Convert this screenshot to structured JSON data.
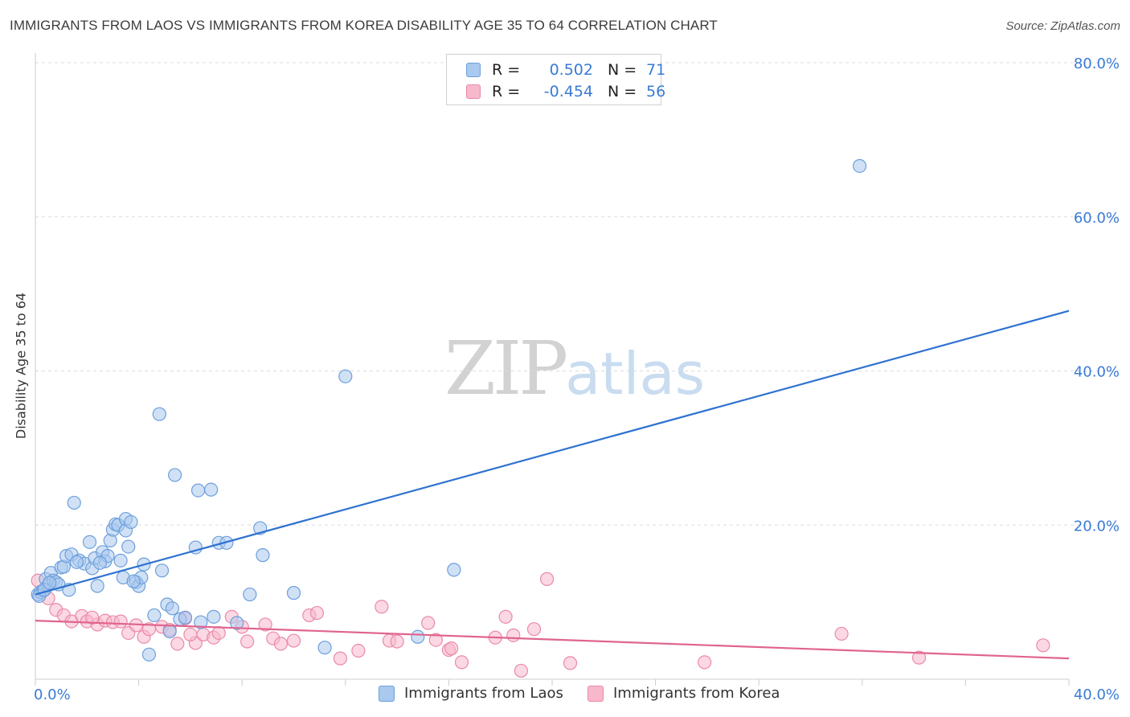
{
  "header": {
    "title": "IMMIGRANTS FROM LAOS VS IMMIGRANTS FROM KOREA DISABILITY AGE 35 TO 64 CORRELATION CHART",
    "source": "Source: ZipAtlas.com"
  },
  "watermark": {
    "zip": "ZIP",
    "atlas": "atlas"
  },
  "legend": {
    "laos": {
      "r_label": "R =",
      "r_value": "0.502",
      "n_label": "N =",
      "n_value": "71"
    },
    "korea": {
      "r_label": "R =",
      "r_value": "-0.454",
      "n_label": "N =",
      "n_value": "56"
    }
  },
  "bottom_legend": {
    "laos_label": "Immigrants from Laos",
    "korea_label": "Immigrants from Korea"
  },
  "colors": {
    "laos_fill": "#a9c9ef",
    "laos_stroke": "#6d9fdc",
    "laos_line": "#2f72d0",
    "korea_fill": "#f7b8cc",
    "korea_stroke": "#ea8aa8",
    "korea_line": "#e0648f",
    "tick_text": "#3a7bd5",
    "grid": "#dddddd"
  },
  "chart_data": {
    "type": "scatter",
    "title": "IMMIGRANTS FROM LAOS VS IMMIGRANTS FROM KOREA DISABILITY AGE 35 TO 64 CORRELATION CHART",
    "xlabel": "",
    "ylabel": "Disability Age 35 to 64",
    "xlim": [
      0,
      40
    ],
    "ylim": [
      0,
      80
    ],
    "x_tick_labels": [
      "0.0%",
      "40.0%"
    ],
    "y_ticks": [
      20,
      40,
      60,
      80
    ],
    "y_tick_labels": [
      "20.0%",
      "40.0%",
      "60.0%",
      "80.0%"
    ],
    "grid": true,
    "series": [
      {
        "name": "Immigrants from Laos",
        "r": 0.502,
        "n": 71,
        "trend": {
          "x": [
            0,
            40
          ],
          "y": [
            11.0,
            47.8
          ]
        },
        "points": [
          [
            0.1,
            11.0
          ],
          [
            0.2,
            11.3
          ],
          [
            0.3,
            11.5
          ],
          [
            0.4,
            13.0
          ],
          [
            0.5,
            12.2
          ],
          [
            0.6,
            13.8
          ],
          [
            0.7,
            12.8
          ],
          [
            0.8,
            12.6
          ],
          [
            0.9,
            12.3
          ],
          [
            1.0,
            14.5
          ],
          [
            1.1,
            14.6
          ],
          [
            1.3,
            11.6
          ],
          [
            1.2,
            16.0
          ],
          [
            1.4,
            16.2
          ],
          [
            1.5,
            22.9
          ],
          [
            1.7,
            15.4
          ],
          [
            1.9,
            15.0
          ],
          [
            2.1,
            17.8
          ],
          [
            2.2,
            14.4
          ],
          [
            2.3,
            15.7
          ],
          [
            2.4,
            12.1
          ],
          [
            2.6,
            16.5
          ],
          [
            2.7,
            15.3
          ],
          [
            2.8,
            16.0
          ],
          [
            2.9,
            18.0
          ],
          [
            3.0,
            19.4
          ],
          [
            3.1,
            20.1
          ],
          [
            3.2,
            20.0
          ],
          [
            3.3,
            15.4
          ],
          [
            3.4,
            13.2
          ],
          [
            3.5,
            19.3
          ],
          [
            3.5,
            20.8
          ],
          [
            3.6,
            17.2
          ],
          [
            3.7,
            20.4
          ],
          [
            3.9,
            12.6
          ],
          [
            4.0,
            12.1
          ],
          [
            4.1,
            13.2
          ],
          [
            4.2,
            14.9
          ],
          [
            4.4,
            3.2
          ],
          [
            4.6,
            8.3
          ],
          [
            4.8,
            34.4
          ],
          [
            4.9,
            14.1
          ],
          [
            5.1,
            9.7
          ],
          [
            5.3,
            9.2
          ],
          [
            5.4,
            26.5
          ],
          [
            5.6,
            7.8
          ],
          [
            5.2,
            6.2
          ],
          [
            6.2,
            17.1
          ],
          [
            6.3,
            24.5
          ],
          [
            6.4,
            7.4
          ],
          [
            6.8,
            24.6
          ],
          [
            6.9,
            8.1
          ],
          [
            7.1,
            17.7
          ],
          [
            7.4,
            17.7
          ],
          [
            7.8,
            7.3
          ],
          [
            8.3,
            11.0
          ],
          [
            8.7,
            19.6
          ],
          [
            8.8,
            16.1
          ],
          [
            10.0,
            11.2
          ],
          [
            11.2,
            4.1
          ],
          [
            12.0,
            39.3
          ],
          [
            14.8,
            5.5
          ],
          [
            16.2,
            14.2
          ],
          [
            31.9,
            66.6
          ],
          [
            0.15,
            10.8
          ],
          [
            0.35,
            11.6
          ],
          [
            0.55,
            12.5
          ],
          [
            1.6,
            15.2
          ],
          [
            2.5,
            15.1
          ],
          [
            3.8,
            12.7
          ],
          [
            5.8,
            8.0
          ]
        ]
      },
      {
        "name": "Immigrants from Korea",
        "r": -0.454,
        "n": 56,
        "trend": {
          "x": [
            0,
            40
          ],
          "y": [
            7.6,
            2.7
          ]
        },
        "points": [
          [
            0.1,
            12.8
          ],
          [
            0.3,
            11.5
          ],
          [
            0.5,
            10.5
          ],
          [
            0.8,
            9.0
          ],
          [
            1.1,
            8.3
          ],
          [
            1.4,
            7.5
          ],
          [
            1.8,
            8.2
          ],
          [
            2.0,
            7.5
          ],
          [
            2.4,
            7.1
          ],
          [
            2.7,
            7.6
          ],
          [
            3.0,
            7.4
          ],
          [
            3.3,
            7.5
          ],
          [
            3.6,
            6.0
          ],
          [
            3.9,
            7.0
          ],
          [
            4.2,
            5.5
          ],
          [
            4.4,
            6.5
          ],
          [
            4.9,
            6.8
          ],
          [
            5.2,
            6.4
          ],
          [
            5.5,
            4.6
          ],
          [
            5.8,
            7.9
          ],
          [
            6.2,
            4.7
          ],
          [
            6.5,
            5.8
          ],
          [
            6.9,
            5.4
          ],
          [
            7.1,
            6.0
          ],
          [
            7.6,
            8.1
          ],
          [
            8.0,
            6.8
          ],
          [
            8.2,
            4.9
          ],
          [
            8.9,
            7.1
          ],
          [
            9.2,
            5.3
          ],
          [
            9.5,
            4.6
          ],
          [
            10.0,
            5.0
          ],
          [
            10.6,
            8.3
          ],
          [
            10.9,
            8.6
          ],
          [
            11.8,
            2.7
          ],
          [
            12.5,
            3.7
          ],
          [
            13.4,
            9.4
          ],
          [
            13.7,
            5.0
          ],
          [
            15.2,
            7.3
          ],
          [
            15.5,
            5.1
          ],
          [
            16.0,
            3.8
          ],
          [
            16.5,
            2.2
          ],
          [
            17.8,
            5.4
          ],
          [
            18.2,
            8.1
          ],
          [
            18.5,
            5.7
          ],
          [
            18.8,
            1.1
          ],
          [
            19.3,
            6.5
          ],
          [
            19.8,
            13.0
          ],
          [
            20.7,
            2.1
          ],
          [
            25.9,
            2.2
          ],
          [
            31.2,
            5.9
          ],
          [
            34.2,
            2.8
          ],
          [
            39.0,
            4.4
          ],
          [
            14.0,
            4.9
          ],
          [
            16.1,
            4.0
          ],
          [
            2.2,
            8.0
          ],
          [
            6.0,
            5.8
          ]
        ]
      }
    ]
  }
}
